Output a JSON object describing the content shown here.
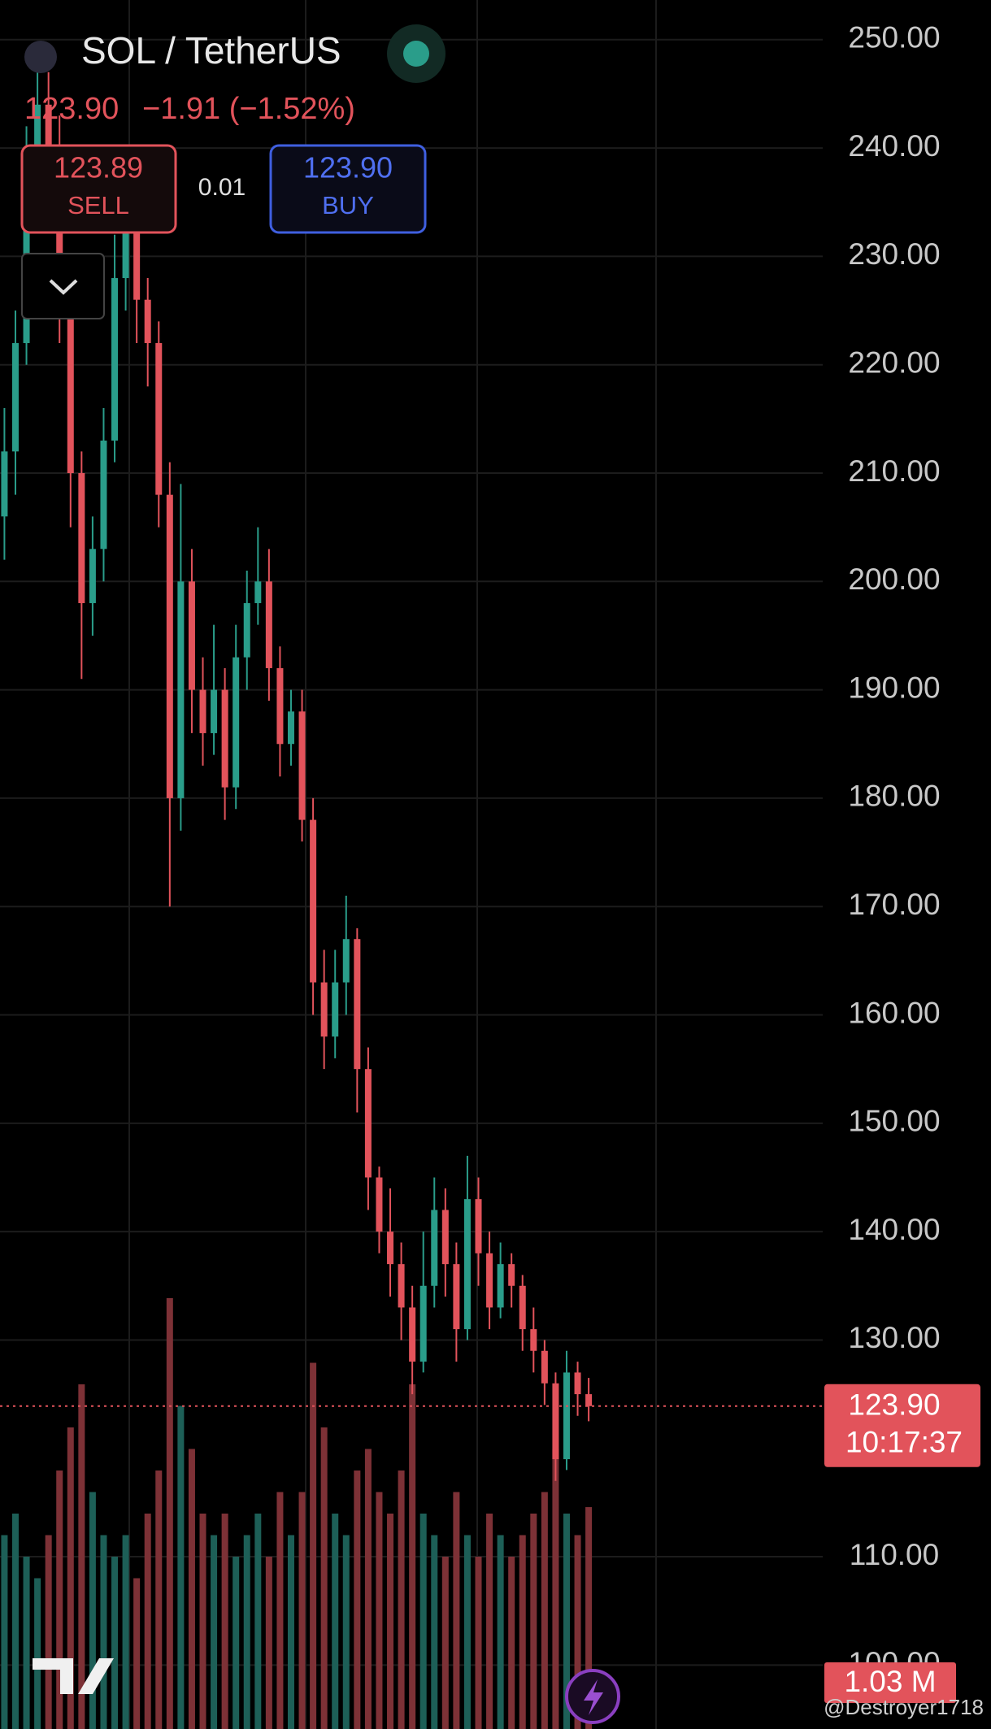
{
  "header": {
    "symbol": "SOL / TetherUS",
    "price": "123.90",
    "change": "−1.91 (−1.52%)",
    "sell_price": "123.89",
    "sell_label": "SELL",
    "spread": "0.01",
    "buy_price": "123.90",
    "buy_label": "BUY"
  },
  "chart_data": {
    "type": "candlestick",
    "up_color": "#2a9d8a",
    "down_color": "#e2535b",
    "up_volume_color": "#1d5f57",
    "down_volume_color": "#7d3136",
    "ylim": [
      94.1,
      253.66
    ],
    "yticks": [
      {
        "value": 250,
        "label": "250.00"
      },
      {
        "value": 240,
        "label": "240.00"
      },
      {
        "value": 230,
        "label": "230.00"
      },
      {
        "value": 220,
        "label": "220.00"
      },
      {
        "value": 210,
        "label": "210.00"
      },
      {
        "value": 200,
        "label": "200.00"
      },
      {
        "value": 190,
        "label": "190.00"
      },
      {
        "value": 180,
        "label": "180.00"
      },
      {
        "value": 170,
        "label": "170.00"
      },
      {
        "value": 160,
        "label": "160.00"
      },
      {
        "value": 150,
        "label": "150.00"
      },
      {
        "value": 140,
        "label": "140.00"
      },
      {
        "value": 130,
        "label": "130.00"
      },
      {
        "value": 110,
        "label": "110.00"
      },
      {
        "value": 100,
        "label": "100.00"
      }
    ],
    "grid": true,
    "open": [
      206,
      212,
      222,
      238,
      244,
      240,
      226,
      210,
      198,
      203,
      213,
      228,
      233,
      226,
      222,
      208,
      180,
      200,
      190,
      186,
      190,
      181,
      193,
      198,
      200,
      192,
      185,
      188,
      178,
      163,
      158,
      163,
      167,
      155,
      145,
      140,
      137,
      133,
      128,
      135,
      142,
      137,
      131,
      143,
      138,
      133,
      137,
      135,
      131,
      129,
      126,
      119,
      127,
      125
    ],
    "high": [
      216,
      225,
      242,
      249,
      247,
      243,
      228,
      212,
      206,
      216,
      232,
      236,
      235,
      228,
      224,
      211,
      209,
      203,
      193,
      196,
      192,
      196,
      201,
      205,
      203,
      194,
      190,
      190,
      180,
      166,
      166,
      171,
      168,
      157,
      146,
      144,
      139,
      135,
      140,
      145,
      144,
      139,
      147,
      145,
      140,
      139,
      138,
      136,
      133,
      130,
      127,
      129,
      128,
      126.5
    ],
    "low": [
      202,
      208,
      220,
      235,
      236,
      222,
      205,
      191,
      195,
      200,
      211,
      225,
      222,
      218,
      205,
      170,
      177,
      186,
      183,
      184,
      178,
      179,
      190,
      196,
      189,
      182,
      183,
      176,
      160,
      155,
      156,
      160,
      151,
      142,
      138,
      134,
      130,
      125,
      127,
      133,
      134,
      128,
      130,
      135,
      131,
      132,
      133,
      129,
      127,
      124,
      117,
      118,
      123,
      122.5
    ],
    "close": [
      212,
      222,
      238,
      244,
      240,
      226,
      210,
      198,
      203,
      213,
      228,
      233,
      226,
      222,
      208,
      180,
      200,
      190,
      186,
      190,
      181,
      193,
      198,
      200,
      192,
      185,
      188,
      178,
      163,
      158,
      163,
      167,
      155,
      145,
      140,
      137,
      133,
      128,
      135,
      142,
      137,
      131,
      143,
      138,
      133,
      137,
      135,
      131,
      129,
      126,
      119,
      127,
      125,
      123.9
    ],
    "volume": [
      0.9,
      1.0,
      0.8,
      0.7,
      0.9,
      1.2,
      1.4,
      1.6,
      1.1,
      0.9,
      0.8,
      0.9,
      0.7,
      1.0,
      1.2,
      2.0,
      1.5,
      1.3,
      1.0,
      0.9,
      1.0,
      0.8,
      0.9,
      1.0,
      0.8,
      1.1,
      0.9,
      1.1,
      1.7,
      1.4,
      1.0,
      0.9,
      1.2,
      1.3,
      1.1,
      1.0,
      1.2,
      1.6,
      1.0,
      0.9,
      0.8,
      1.1,
      0.9,
      0.8,
      1.0,
      0.9,
      0.8,
      0.9,
      1.0,
      1.1,
      1.3,
      1.0,
      0.9,
      1.03
    ],
    "last_price": 123.9,
    "last_price_label": "123.90",
    "countdown": "10:17:37",
    "last_volume_label": "1.03 M"
  },
  "watermark": "@Destroyer1718"
}
